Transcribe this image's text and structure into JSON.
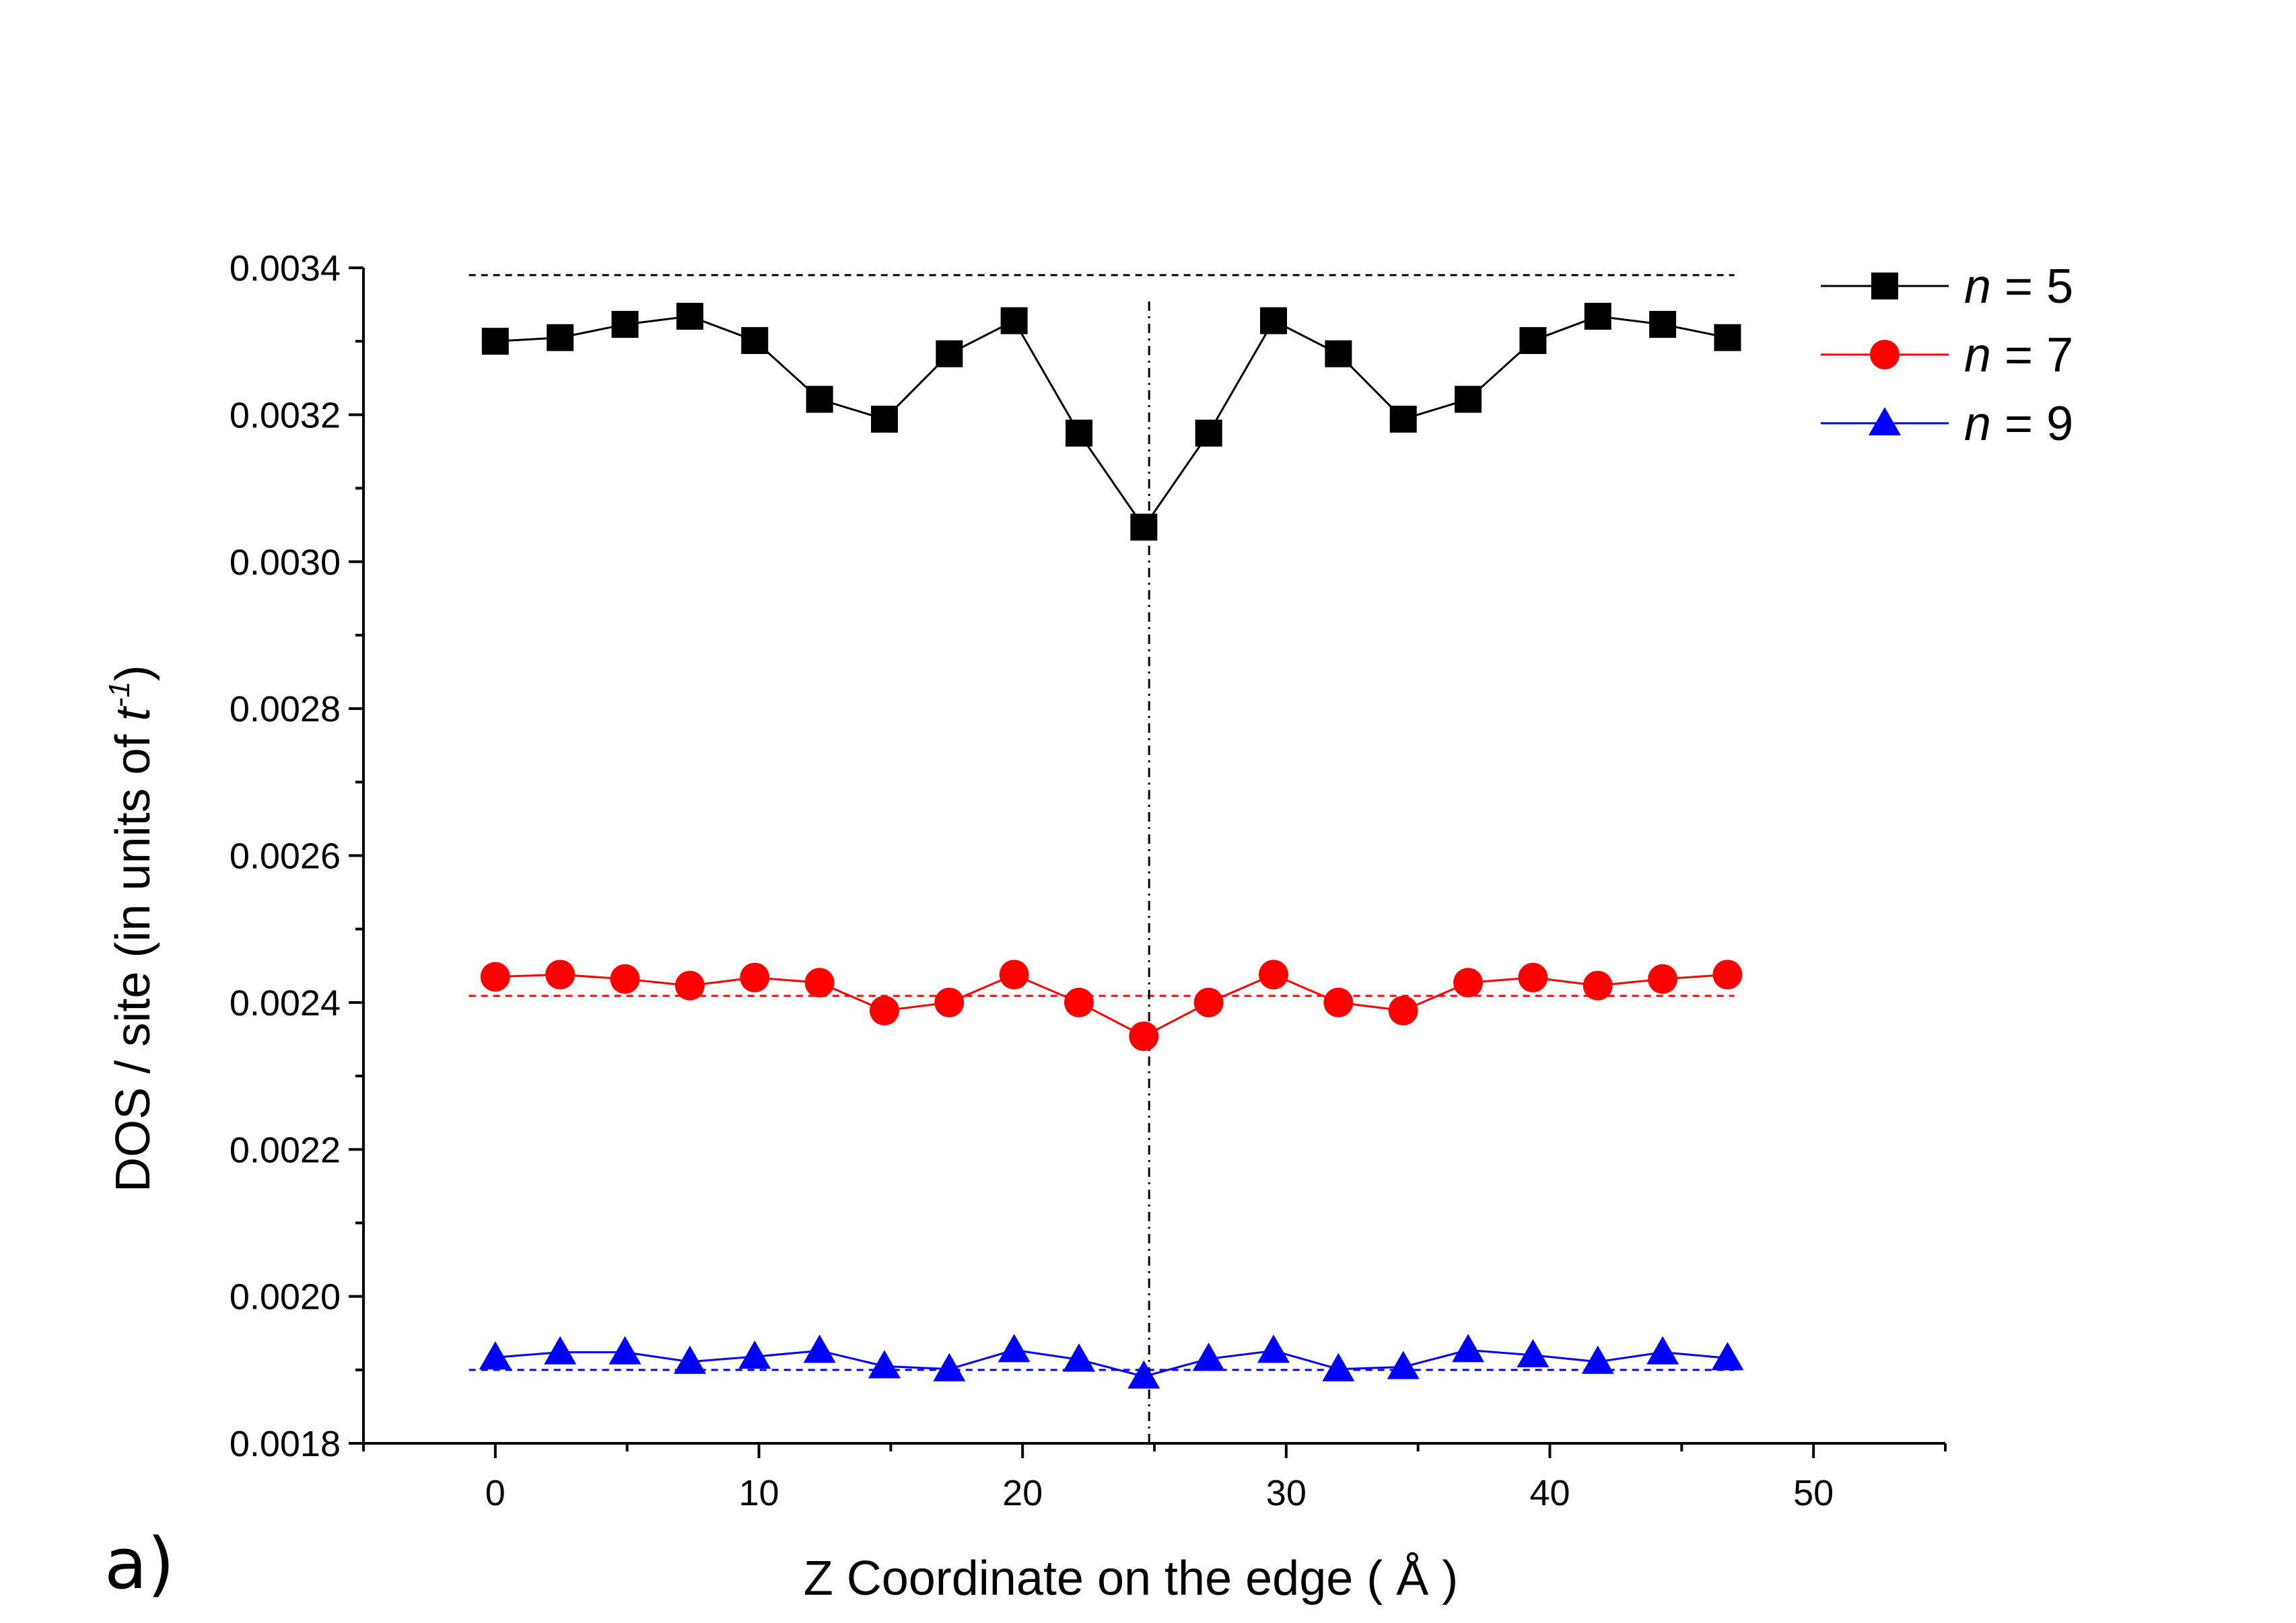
{
  "chart_data": {
    "type": "line",
    "title": "",
    "panel_label": "a)",
    "xlabel": "Z Coordinate on the edge ( Å )",
    "ylabel_parts": {
      "prefix": "DOS / site (in units of ",
      "var": "t",
      "sup": "-1",
      "suffix": ")"
    },
    "xlim": [
      -5,
      55
    ],
    "ylim": [
      0.0018,
      0.0034
    ],
    "x_ticks": [
      0,
      10,
      20,
      30,
      40,
      50
    ],
    "x_tick_labels": [
      "0",
      "10",
      "20",
      "30",
      "40",
      "50"
    ],
    "y_ticks": [
      0.0018,
      0.002,
      0.0022,
      0.0024,
      0.0026,
      0.0028,
      0.003,
      0.0032,
      0.0034
    ],
    "y_tick_labels": [
      "0.0018",
      "0.0020",
      "0.0022",
      "0.0024",
      "0.0026",
      "0.0028",
      "0.0030",
      "0.0032",
      "0.0034"
    ],
    "x": [
      0,
      2.46,
      4.92,
      7.38,
      9.84,
      12.3,
      14.76,
      17.22,
      19.68,
      22.14,
      24.6,
      27.06,
      29.52,
      31.98,
      34.44,
      36.9,
      39.36,
      41.82,
      44.28,
      46.74
    ],
    "series": [
      {
        "name": "n = 5",
        "label_var": "n",
        "label_rest": " = 5",
        "color": "#000000",
        "marker": "square",
        "values": [
          0.0033,
          0.003305,
          0.003323,
          0.003334,
          0.003301,
          0.003221,
          0.003194,
          0.003283,
          0.003328,
          0.003175,
          0.003047,
          0.003175,
          0.003328,
          0.003283,
          0.003194,
          0.003221,
          0.003301,
          0.003334,
          0.003323,
          0.003305
        ]
      },
      {
        "name": "n = 7",
        "label_var": "n",
        "label_rest": " = 7",
        "color": "#ff0000",
        "marker": "circle",
        "values": [
          0.002435,
          0.002438,
          0.002432,
          0.002423,
          0.002434,
          0.002427,
          0.002389,
          0.0024,
          0.002438,
          0.0024,
          0.002354,
          0.0024,
          0.002438,
          0.0024,
          0.002389,
          0.002427,
          0.002434,
          0.002423,
          0.002432,
          0.002438
        ]
      },
      {
        "name": "n = 9",
        "label_var": "n",
        "label_rest": " = 9",
        "color": "#0000ff",
        "marker": "triangle",
        "values": [
          0.001917,
          0.001924,
          0.001924,
          0.001911,
          0.001918,
          0.001926,
          0.001905,
          0.001901,
          0.001927,
          0.001914,
          0.001891,
          0.001915,
          0.001926,
          0.001901,
          0.001904,
          0.001927,
          0.00192,
          0.001911,
          0.001924,
          0.001916
        ]
      }
    ],
    "reference_lines": [
      {
        "orientation": "horizontal",
        "value": 0.00339,
        "x_range": [
          -1,
          47
        ],
        "color": "#000000",
        "style": "dashed"
      },
      {
        "orientation": "horizontal",
        "value": 0.002409,
        "x_range": [
          -1,
          47
        ],
        "color": "#ff0000",
        "style": "dashed"
      },
      {
        "orientation": "horizontal",
        "value": 0.0019,
        "x_range": [
          -1,
          47
        ],
        "color": "#0000ff",
        "style": "dashed"
      },
      {
        "orientation": "vertical",
        "value": 24.8,
        "y_range": [
          0.0018,
          0.003355
        ],
        "color": "#000000",
        "style": "dash-dot"
      }
    ],
    "legend_position": "top-right",
    "grid": false
  }
}
